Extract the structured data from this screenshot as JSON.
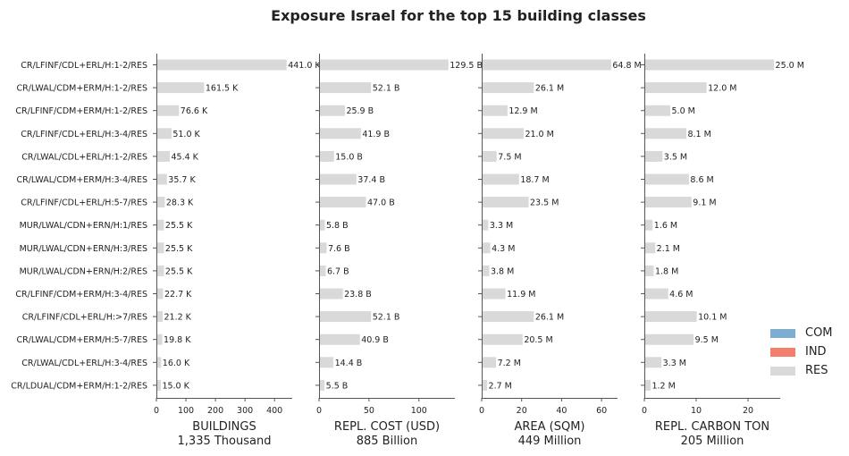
{
  "title": "Exposure Israel for the top 15 building classes",
  "legend": [
    {
      "label": "COM",
      "color": "#7eadd2"
    },
    {
      "label": "IND",
      "color": "#f47f6e"
    },
    {
      "label": "RES",
      "color": "#d9d9d9"
    }
  ],
  "chart_data": {
    "type": "bar",
    "orientation": "horizontal",
    "stacked_by": [
      "COM",
      "IND",
      "RES"
    ],
    "categories": [
      "CR/LFINF/CDL+ERL/H:1-2/RES",
      "CR/LWAL/CDM+ERM/H:1-2/RES",
      "CR/LFINF/CDM+ERM/H:1-2/RES",
      "CR/LFINF/CDL+ERL/H:3-4/RES",
      "CR/LWAL/CDL+ERL/H:1-2/RES",
      "CR/LWAL/CDM+ERM/H:3-4/RES",
      "CR/LFINF/CDL+ERL/H:5-7/RES",
      "MUR/LWAL/CDN+ERN/H:1/RES",
      "MUR/LWAL/CDN+ERN/H:3/RES",
      "MUR/LWAL/CDN+ERN/H:2/RES",
      "CR/LFINF/CDM+ERM/H:3-4/RES",
      "CR/LFINF/CDL+ERL/H:>7/RES",
      "CR/LWAL/CDM+ERM/H:5-7/RES",
      "CR/LWAL/CDL+ERL/H:3-4/RES",
      "CR/LDUAL/CDM+ERM/H:1-2/RES"
    ],
    "panels": [
      {
        "xlabel": "BUILDINGS",
        "total": "1,335 Thousand",
        "unit": "K",
        "xlim": [
          0,
          460
        ],
        "ticks": [
          0,
          100,
          200,
          300,
          400
        ],
        "values": [
          441.0,
          161.5,
          76.6,
          51.0,
          45.4,
          35.7,
          28.3,
          25.5,
          25.5,
          25.5,
          22.7,
          21.2,
          19.8,
          16.0,
          15.0
        ],
        "labels": [
          "441.0 K",
          "161.5 K",
          "76.6 K",
          "51.0 K",
          "45.4 K",
          "35.7 K",
          "28.3 K",
          "25.5 K",
          "25.5 K",
          "25.5 K",
          "22.7 K",
          "21.2 K",
          "19.8 K",
          "16.0 K",
          "15.0 K"
        ]
      },
      {
        "xlabel": "REPL. COST (USD)",
        "total": "885 Billion",
        "unit": "B",
        "xlim": [
          0,
          136
        ],
        "ticks": [
          0,
          50,
          100
        ],
        "values": [
          129.5,
          52.1,
          25.9,
          41.9,
          15.0,
          37.4,
          47.0,
          5.8,
          7.6,
          6.7,
          23.8,
          52.1,
          40.9,
          14.4,
          5.5
        ],
        "labels": [
          "129.5 B",
          "52.1 B",
          "25.9 B",
          "41.9 B",
          "15.0 B",
          "37.4 B",
          "47.0 B",
          "5.8 B",
          "7.6 B",
          "6.7 B",
          "23.8 B",
          "52.1 B",
          "40.9 B",
          "14.4 B",
          "5.5 B"
        ]
      },
      {
        "xlabel": "AREA (SQM)",
        "total": "449 Million",
        "unit": "M",
        "xlim": [
          0,
          68
        ],
        "ticks": [
          0,
          20,
          40,
          60
        ],
        "values": [
          64.8,
          26.1,
          12.9,
          21.0,
          7.5,
          18.7,
          23.5,
          3.3,
          4.3,
          3.8,
          11.9,
          26.1,
          20.5,
          7.2,
          2.7
        ],
        "labels": [
          "64.8 M",
          "26.1 M",
          "12.9 M",
          "21.0 M",
          "7.5 M",
          "18.7 M",
          "23.5 M",
          "3.3 M",
          "4.3 M",
          "3.8 M",
          "11.9 M",
          "26.1 M",
          "20.5 M",
          "7.2 M",
          "2.7 M"
        ]
      },
      {
        "xlabel": "REPL. CARBON TON",
        "total": "205 Million",
        "unit": "M",
        "xlim": [
          0,
          26.2
        ],
        "ticks": [
          0,
          10,
          20
        ],
        "values": [
          25.0,
          12.0,
          5.0,
          8.1,
          3.5,
          8.6,
          9.1,
          1.6,
          2.1,
          1.8,
          4.6,
          10.1,
          9.5,
          3.3,
          1.2
        ],
        "labels": [
          "25.0 M",
          "12.0 M",
          "5.0 M",
          "8.1 M",
          "3.5 M",
          "8.6 M",
          "9.1 M",
          "1.6 M",
          "2.1 M",
          "1.8 M",
          "4.6 M",
          "10.1 M",
          "9.5 M",
          "3.3 M",
          "1.2 M"
        ]
      }
    ]
  }
}
